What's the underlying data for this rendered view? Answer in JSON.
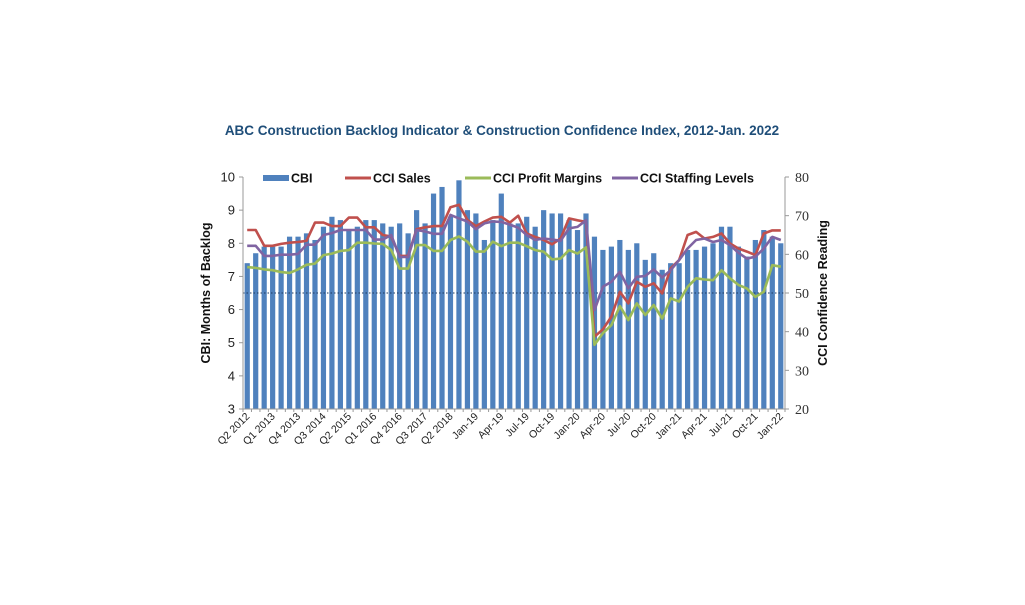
{
  "chart_data": {
    "type": "bar+line",
    "title": "ABC Construction Backlog Indicator & Construction Confidence Index, 2012-Jan. 2022",
    "ylabel_left": "CBI: Months of Backlog",
    "ylabel_right": "CCI Confidence Reading",
    "ylim_left": [
      3,
      10
    ],
    "ylim_right": [
      20,
      80
    ],
    "yticks_left": [
      "3",
      "4",
      "5",
      "6",
      "7",
      "8",
      "9",
      "10"
    ],
    "yticks_right": [
      "20",
      "30",
      "40",
      "50",
      "60",
      "70",
      "80"
    ],
    "reference_line_right": 50,
    "legend_position": "top",
    "x_tick_labels": [
      "Q2 2012",
      "Q1 2013",
      "Q4 2013",
      "Q3 2014",
      "Q2 2015",
      "Q1 2016",
      "Q4 2016",
      "Q3 2017",
      "Q2 2018",
      "Jan-19",
      "Apr-19",
      "Jul-19",
      "Oct-19",
      "Jan-20",
      "Apr-20",
      "Jul-20",
      "Oct-20",
      "Jan-21",
      "Apr-21",
      "Jul-21",
      "Oct-21",
      "Jan-22"
    ],
    "x_tick_every": 3,
    "point_count": 64,
    "series": [
      {
        "name": "CBI",
        "type": "bar",
        "axis": "left",
        "color": "#4f81bd",
        "values": [
          7.4,
          7.7,
          7.9,
          7.9,
          7.9,
          8.2,
          8.2,
          8.3,
          8.1,
          8.5,
          8.8,
          8.7,
          8.4,
          8.5,
          8.7,
          8.7,
          8.6,
          8.5,
          8.6,
          8.3,
          9.0,
          8.6,
          9.5,
          9.7,
          8.8,
          9.9,
          9.0,
          8.9,
          8.1,
          8.7,
          9.5,
          8.6,
          8.6,
          8.8,
          8.5,
          9.0,
          8.9,
          8.9,
          8.7,
          8.4,
          8.9,
          8.2,
          7.8,
          7.9,
          8.1,
          7.8,
          8.0,
          7.5,
          7.7,
          7.2,
          7.4,
          7.4,
          7.8,
          7.8,
          7.9,
          8.0,
          8.5,
          8.5,
          7.9,
          7.6,
          8.1,
          8.4,
          8.2,
          8.0
        ]
      },
      {
        "name": "CCI Sales",
        "type": "line",
        "axis": "right",
        "color": "#c0504d",
        "values": [
          66.3,
          66.3,
          62.2,
          62.2,
          62.7,
          63.0,
          63.2,
          63.5,
          68.2,
          68.2,
          67.3,
          67.3,
          69.5,
          69.5,
          67.0,
          67.0,
          65.0,
          64.6,
          59.6,
          59.6,
          66.5,
          67.0,
          67.3,
          67.3,
          72.2,
          72.8,
          68.9,
          67.3,
          68.5,
          69.5,
          69.7,
          68.2,
          70.0,
          65.4,
          64.5,
          63.7,
          62.6,
          64.1,
          69.3,
          68.8,
          68.4,
          38.7,
          40.6,
          43.9,
          50.3,
          47.3,
          52.9,
          51.6,
          52.5,
          49.9,
          56.4,
          58.5,
          65.0,
          65.8,
          64.1,
          64.5,
          65.4,
          62.8,
          61.5,
          60.7,
          59.8,
          65.4,
          66.2,
          66.2
        ]
      },
      {
        "name": "CCI Profit Margins",
        "type": "line",
        "axis": "right",
        "color": "#9bbb59",
        "values": [
          56.7,
          56.5,
          56.1,
          55.9,
          55.4,
          55.2,
          56.1,
          57.3,
          57.6,
          59.8,
          60.2,
          60.9,
          61.1,
          63.0,
          63.0,
          62.8,
          62.7,
          61.1,
          56.3,
          56.3,
          62.4,
          62.4,
          60.9,
          60.9,
          63.7,
          64.6,
          63.3,
          60.7,
          60.7,
          63.3,
          62.1,
          63.0,
          63.0,
          62.1,
          61.1,
          60.7,
          58.7,
          58.9,
          61.1,
          60.2,
          61.8,
          36.6,
          39.6,
          41.7,
          46.6,
          43.0,
          47.3,
          44.3,
          46.9,
          43.4,
          48.6,
          47.8,
          51.6,
          53.8,
          53.5,
          53.3,
          55.9,
          53.8,
          52.1,
          51.2,
          49.0,
          50.3,
          57.2,
          56.8
        ]
      },
      {
        "name": "CCI Staffing Levels",
        "type": "line",
        "axis": "right",
        "color": "#8064a2",
        "values": [
          62.2,
          62.2,
          59.6,
          59.6,
          59.9,
          59.9,
          60.1,
          62.5,
          62.5,
          65.0,
          65.5,
          66.3,
          66.3,
          66.3,
          66.3,
          63.8,
          63.8,
          65.0,
          59.3,
          59.3,
          66.3,
          65.9,
          65.3,
          65.3,
          70.2,
          69.3,
          68.5,
          66.5,
          68.0,
          68.5,
          68.4,
          67.7,
          66.9,
          65.0,
          63.7,
          64.1,
          63.8,
          63.5,
          66.7,
          67.1,
          68.8,
          45.6,
          51.6,
          52.9,
          55.5,
          51.2,
          54.2,
          54.4,
          56.1,
          54.0,
          55.9,
          58.5,
          61.5,
          63.7,
          64.1,
          63.2,
          63.7,
          62.4,
          60.4,
          58.9,
          59.4,
          61.5,
          64.5,
          63.7
        ]
      }
    ]
  }
}
